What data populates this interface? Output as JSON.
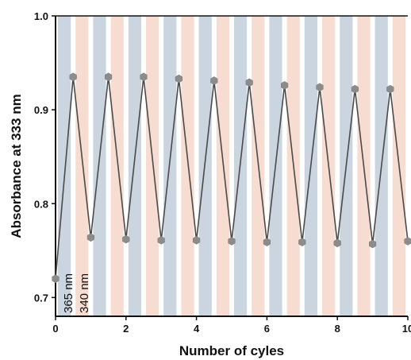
{
  "chart_data": {
    "type": "line",
    "title": "",
    "xlabel": "Number of cyles",
    "ylabel": "Absorbance at 333 nm",
    "xlim": [
      0,
      10
    ],
    "ylim": [
      0.68,
      1.0
    ],
    "x_ticks": [
      0,
      2,
      4,
      6,
      8,
      10
    ],
    "x_tick_labels": [
      "0",
      "2",
      "4",
      "6",
      "8",
      "10"
    ],
    "y_ticks": [
      0.7,
      0.8,
      0.9,
      1.0
    ],
    "y_tick_labels": [
      "0.7",
      "0.8",
      "0.9",
      "1.0"
    ],
    "grid": false,
    "series": [
      {
        "x": [
          0,
          0.5,
          1,
          1.5,
          2,
          2.5,
          3,
          3.5,
          4,
          4.5,
          5,
          5.5,
          6,
          6.5,
          7,
          7.5,
          8,
          8.5,
          9,
          9.5,
          10
        ],
        "y": [
          0.72,
          0.935,
          0.764,
          0.935,
          0.762,
          0.935,
          0.761,
          0.933,
          0.761,
          0.931,
          0.76,
          0.929,
          0.759,
          0.926,
          0.759,
          0.924,
          0.758,
          0.922,
          0.757,
          0.922,
          0.76
        ],
        "color": "#4a4a4a",
        "marker": "hexagon",
        "marker_color": "#8c8c8c"
      }
    ],
    "bands": {
      "period": 0.5,
      "pattern": [
        "uv",
        "vis"
      ],
      "colors": {
        "uv": "#cbd5df",
        "vis": "#f7ddd1"
      },
      "labels": {
        "uv": "365 nm",
        "vis": "340 nm"
      }
    }
  }
}
